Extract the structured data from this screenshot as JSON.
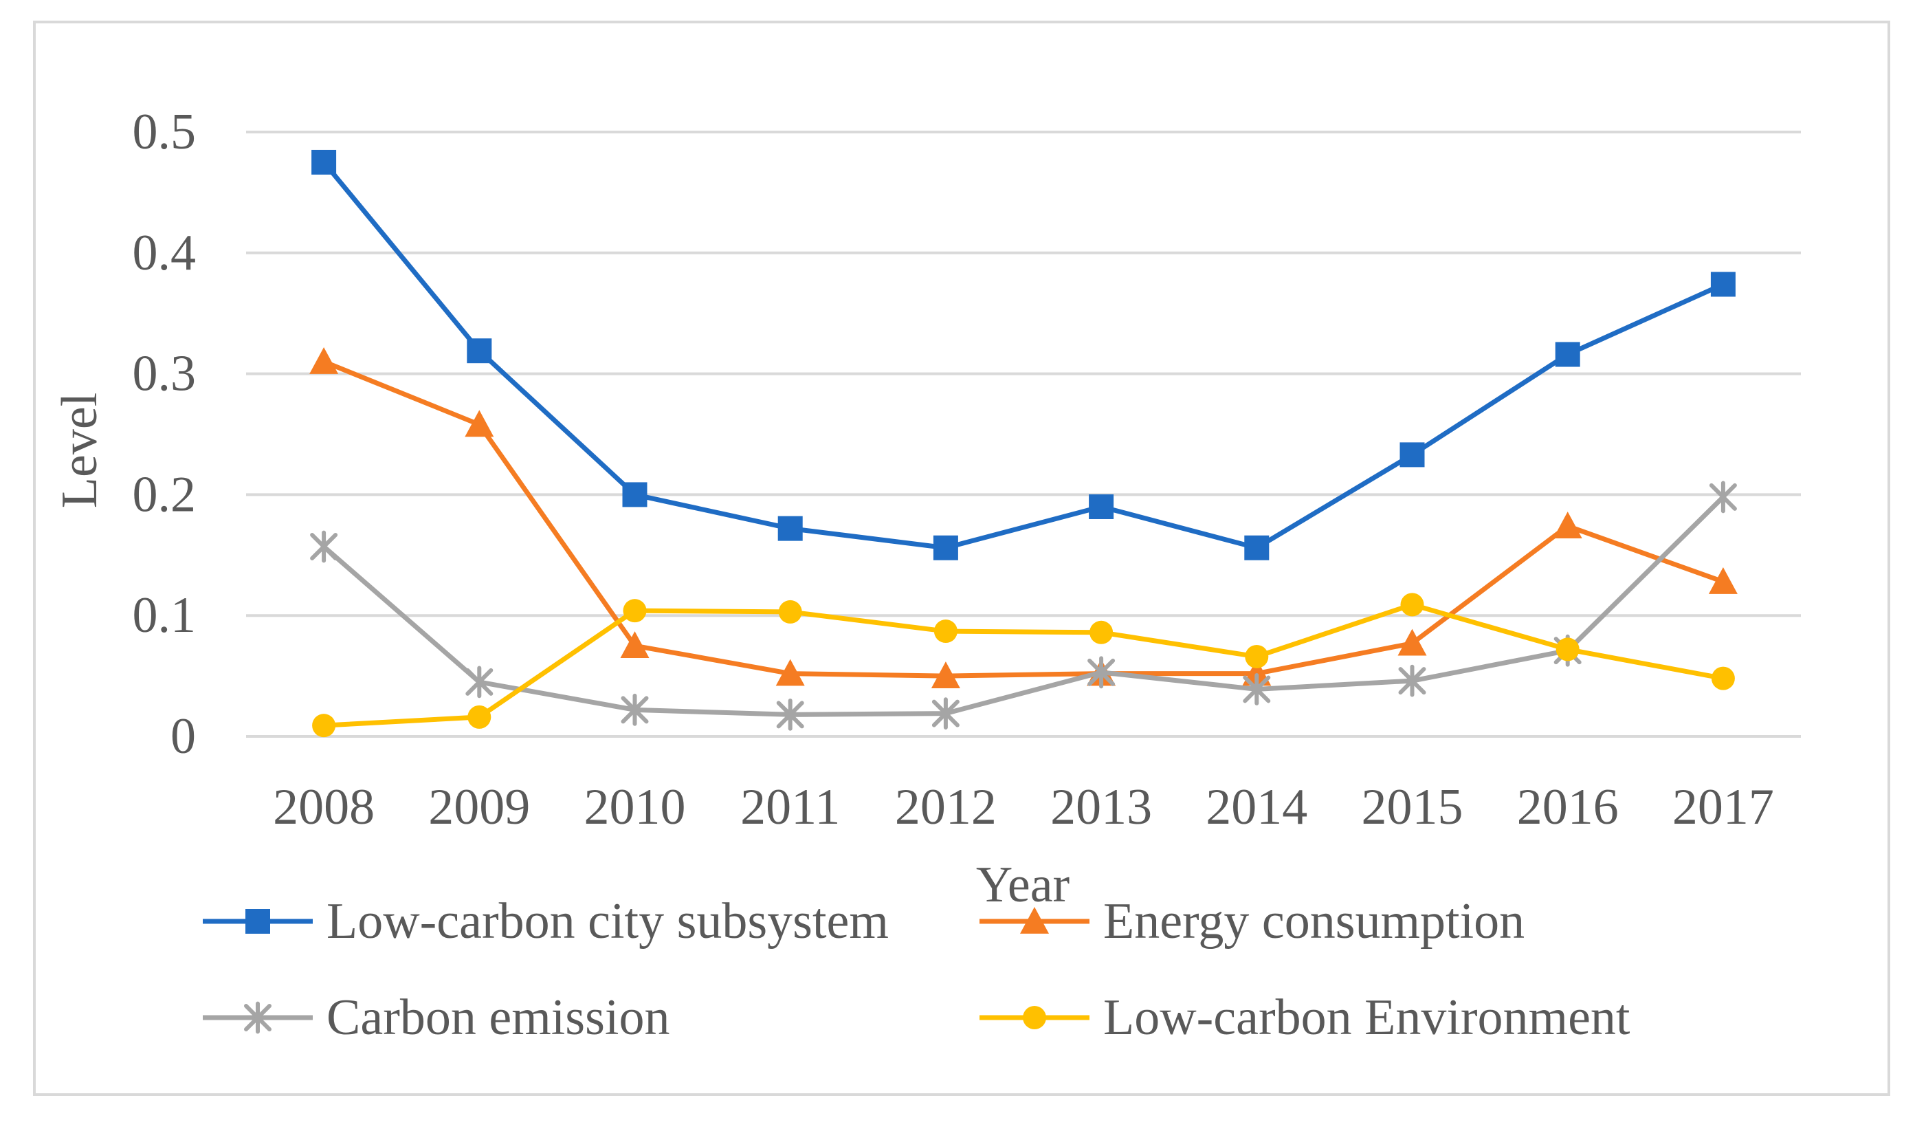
{
  "chart_data": {
    "type": "line",
    "title": "",
    "xlabel": "Year",
    "ylabel": "Level",
    "ylim": [
      0,
      0.5
    ],
    "yticks": [
      {
        "value": 0,
        "label": "0"
      },
      {
        "value": 0.1,
        "label": "0.1"
      },
      {
        "value": 0.2,
        "label": "0.2"
      },
      {
        "value": 0.3,
        "label": "0.3"
      },
      {
        "value": 0.4,
        "label": "0.4"
      },
      {
        "value": 0.5,
        "label": "0.5"
      }
    ],
    "categories": [
      "2008",
      "2009",
      "2010",
      "2011",
      "2012",
      "2013",
      "2014",
      "2015",
      "2016",
      "2017"
    ],
    "grid": true,
    "legend_position": "bottom",
    "series": [
      {
        "name": "Low-carbon city subsystem",
        "color": "#1f6cc4",
        "marker": "square",
        "values": [
          0.475,
          0.319,
          0.2,
          0.172,
          0.156,
          0.19,
          0.156,
          0.233,
          0.316,
          0.374
        ]
      },
      {
        "name": "Energy consumption",
        "color": "#f57c22",
        "marker": "triangle",
        "values": [
          0.31,
          0.258,
          0.075,
          0.052,
          0.05,
          0.052,
          0.052,
          0.077,
          0.174,
          0.128
        ]
      },
      {
        "name": "Carbon emission",
        "color": "#a5a5a5",
        "marker": "star",
        "values": [
          0.157,
          0.045,
          0.022,
          0.018,
          0.019,
          0.053,
          0.039,
          0.046,
          0.071,
          0.198
        ]
      },
      {
        "name": "Low-carbon Environment",
        "color": "#ffc000",
        "marker": "circle",
        "values": [
          0.009,
          0.016,
          0.104,
          0.103,
          0.087,
          0.086,
          0.066,
          0.109,
          0.072,
          0.048
        ]
      }
    ]
  }
}
